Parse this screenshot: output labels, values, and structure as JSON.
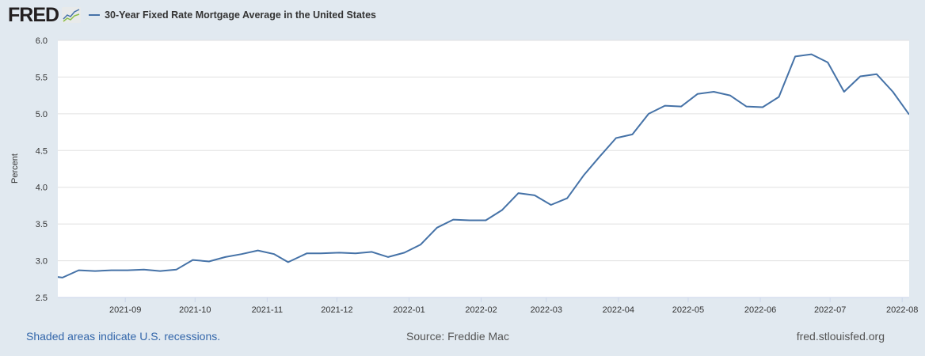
{
  "header": {
    "logo": "FRED",
    "legend_label": "30-Year Fixed Rate Mortgage Average in the United States"
  },
  "colors": {
    "series": "#4572a7",
    "background": "#e1e9f0",
    "plot": "#ffffff",
    "grid": "#e0e0e0"
  },
  "footer": {
    "recessions": "Shaded areas indicate U.S. recessions.",
    "source": "Source: Freddie Mac",
    "site": "fred.stlouisfed.org"
  },
  "chart_data": {
    "type": "line",
    "title": "30-Year Fixed Rate Mortgage Average in the United States",
    "xlabel": "",
    "ylabel": "Percent",
    "ylim": [
      2.5,
      6.0
    ],
    "xlim": [
      "2021-08-03",
      "2022-08-04"
    ],
    "yticks": [
      "2.5",
      "3.0",
      "3.5",
      "4.0",
      "4.5",
      "5.0",
      "5.5",
      "6.0"
    ],
    "xticks": [
      {
        "date": "2021-09-01",
        "label": "2021-09"
      },
      {
        "date": "2021-10-01",
        "label": "2021-10"
      },
      {
        "date": "2021-11-01",
        "label": "2021-11"
      },
      {
        "date": "2021-12-01",
        "label": "2021-12"
      },
      {
        "date": "2022-01-01",
        "label": "2022-01"
      },
      {
        "date": "2022-02-01",
        "label": "2022-02"
      },
      {
        "date": "2022-03-01",
        "label": "2022-03"
      },
      {
        "date": "2022-04-01",
        "label": "2022-04"
      },
      {
        "date": "2022-05-01",
        "label": "2022-05"
      },
      {
        "date": "2022-06-01",
        "label": "2022-06"
      },
      {
        "date": "2022-07-01",
        "label": "2022-07"
      },
      {
        "date": "2022-08-01",
        "label": "2022-08"
      }
    ],
    "grid": true,
    "legend": "top-left",
    "series": [
      {
        "name": "30-Year Fixed Rate Mortgage Average in the United States",
        "x": [
          "2021-07-29",
          "2021-08-05",
          "2021-08-12",
          "2021-08-19",
          "2021-08-26",
          "2021-09-02",
          "2021-09-09",
          "2021-09-16",
          "2021-09-23",
          "2021-09-30",
          "2021-10-07",
          "2021-10-14",
          "2021-10-21",
          "2021-10-28",
          "2021-11-04",
          "2021-11-10",
          "2021-11-18",
          "2021-11-24",
          "2021-12-02",
          "2021-12-09",
          "2021-12-16",
          "2021-12-23",
          "2021-12-30",
          "2022-01-06",
          "2022-01-13",
          "2022-01-20",
          "2022-01-27",
          "2022-02-03",
          "2022-02-10",
          "2022-02-17",
          "2022-02-24",
          "2022-03-03",
          "2022-03-10",
          "2022-03-17",
          "2022-03-24",
          "2022-03-31",
          "2022-04-07",
          "2022-04-14",
          "2022-04-21",
          "2022-04-28",
          "2022-05-05",
          "2022-05-12",
          "2022-05-19",
          "2022-05-26",
          "2022-06-02",
          "2022-06-09",
          "2022-06-16",
          "2022-06-23",
          "2022-06-30",
          "2022-07-07",
          "2022-07-14",
          "2022-07-21",
          "2022-07-28",
          "2022-08-04"
        ],
        "values": [
          2.8,
          2.77,
          2.87,
          2.86,
          2.87,
          2.87,
          2.88,
          2.86,
          2.88,
          3.01,
          2.99,
          3.05,
          3.09,
          3.14,
          3.09,
          2.98,
          3.1,
          3.1,
          3.11,
          3.1,
          3.12,
          3.05,
          3.11,
          3.22,
          3.45,
          3.56,
          3.55,
          3.55,
          3.69,
          3.92,
          3.89,
          3.76,
          3.85,
          4.16,
          4.42,
          4.67,
          4.72,
          5.0,
          5.11,
          5.1,
          5.27,
          5.3,
          5.25,
          5.1,
          5.09,
          5.23,
          5.78,
          5.81,
          5.7,
          5.3,
          5.51,
          5.54,
          5.3,
          4.99
        ]
      }
    ]
  }
}
